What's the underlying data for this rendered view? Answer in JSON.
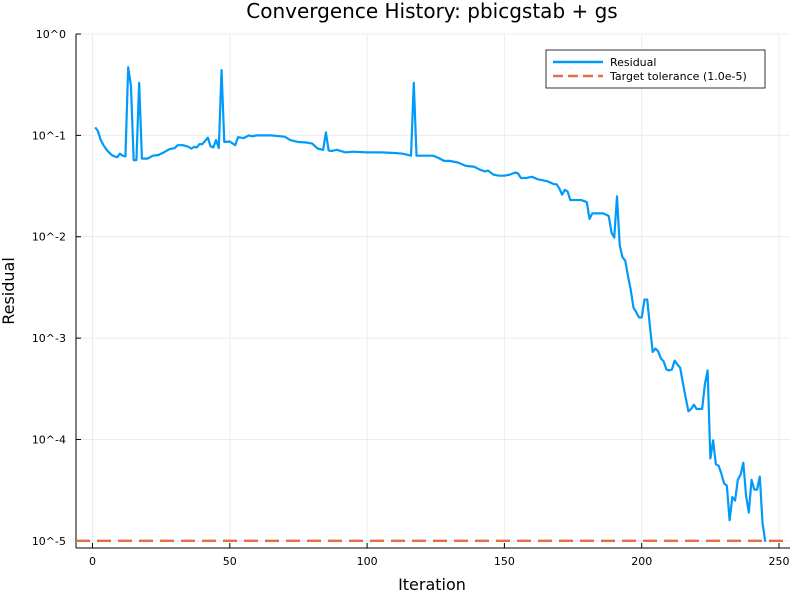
{
  "chart_data": {
    "type": "line",
    "title": "Convergence History: pbicgstab + gs",
    "xlabel": "Iteration",
    "ylabel": "Residual",
    "xlim": [
      -6,
      254
    ],
    "ylim": [
      8.5e-06,
      1.0
    ],
    "yscale": "log",
    "grid": true,
    "legend_position": "top-right",
    "x_ticks": [
      0,
      50,
      100,
      150,
      200,
      250
    ],
    "y_ticks": [
      {
        "value": 1.0,
        "label": "10^0"
      },
      {
        "value": 0.1,
        "label": "10^-1"
      },
      {
        "value": 0.01,
        "label": "10^-2"
      },
      {
        "value": 0.001,
        "label": "10^-3"
      },
      {
        "value": 0.0001,
        "label": "10^-4"
      },
      {
        "value": 1e-05,
        "label": "10^-5"
      }
    ],
    "series": [
      {
        "name": "Residual",
        "color": "#009af9",
        "points": [
          [
            1,
            0.12
          ],
          [
            2,
            0.11
          ],
          [
            3,
            0.09
          ],
          [
            4,
            0.08
          ],
          [
            5,
            0.073
          ],
          [
            6,
            0.068
          ],
          [
            7,
            0.064
          ],
          [
            8,
            0.062
          ],
          [
            9,
            0.061
          ],
          [
            10,
            0.066
          ],
          [
            11,
            0.063
          ],
          [
            12,
            0.062
          ],
          [
            13,
            0.47
          ],
          [
            14,
            0.31
          ],
          [
            15,
            0.057
          ],
          [
            16,
            0.057
          ],
          [
            17,
            0.33
          ],
          [
            18,
            0.059
          ],
          [
            20,
            0.059
          ],
          [
            22,
            0.063
          ],
          [
            24,
            0.064
          ],
          [
            26,
            0.068
          ],
          [
            28,
            0.073
          ],
          [
            30,
            0.075
          ],
          [
            31,
            0.08
          ],
          [
            33,
            0.08
          ],
          [
            35,
            0.077
          ],
          [
            36,
            0.074
          ],
          [
            37,
            0.077
          ],
          [
            38,
            0.076
          ],
          [
            39,
            0.082
          ],
          [
            40,
            0.082
          ],
          [
            41,
            0.088
          ],
          [
            42,
            0.095
          ],
          [
            43,
            0.078
          ],
          [
            44,
            0.076
          ],
          [
            45,
            0.09
          ],
          [
            46,
            0.075
          ],
          [
            47,
            0.44
          ],
          [
            48,
            0.086
          ],
          [
            50,
            0.087
          ],
          [
            52,
            0.08
          ],
          [
            53,
            0.096
          ],
          [
            55,
            0.094
          ],
          [
            57,
            0.1
          ],
          [
            58,
            0.098
          ],
          [
            60,
            0.1
          ],
          [
            65,
            0.1
          ],
          [
            70,
            0.097
          ],
          [
            72,
            0.09
          ],
          [
            75,
            0.086
          ],
          [
            78,
            0.085
          ],
          [
            80,
            0.083
          ],
          [
            82,
            0.074
          ],
          [
            84,
            0.072
          ],
          [
            85,
            0.107
          ],
          [
            86,
            0.071
          ],
          [
            87,
            0.07
          ],
          [
            89,
            0.072
          ],
          [
            92,
            0.068
          ],
          [
            95,
            0.069
          ],
          [
            100,
            0.068
          ],
          [
            105,
            0.068
          ],
          [
            110,
            0.067
          ],
          [
            113,
            0.066
          ],
          [
            116,
            0.063
          ],
          [
            117,
            0.33
          ],
          [
            118,
            0.063
          ],
          [
            120,
            0.063
          ],
          [
            124,
            0.063
          ],
          [
            126,
            0.06
          ],
          [
            128,
            0.056
          ],
          [
            130,
            0.056
          ],
          [
            133,
            0.054
          ],
          [
            136,
            0.05
          ],
          [
            139,
            0.049
          ],
          [
            141,
            0.046
          ],
          [
            143,
            0.044
          ],
          [
            144,
            0.045
          ],
          [
            146,
            0.041
          ],
          [
            148,
            0.04
          ],
          [
            150,
            0.04
          ],
          [
            152,
            0.041
          ],
          [
            154,
            0.043
          ],
          [
            155,
            0.042
          ],
          [
            156,
            0.038
          ],
          [
            158,
            0.038
          ],
          [
            160,
            0.039
          ],
          [
            162,
            0.037
          ],
          [
            164,
            0.036
          ],
          [
            166,
            0.035
          ],
          [
            168,
            0.033
          ],
          [
            169,
            0.033
          ],
          [
            170,
            0.03
          ],
          [
            171,
            0.026
          ],
          [
            172,
            0.029
          ],
          [
            173,
            0.028
          ],
          [
            174,
            0.023
          ],
          [
            176,
            0.023
          ],
          [
            178,
            0.023
          ],
          [
            180,
            0.022
          ],
          [
            181,
            0.015
          ],
          [
            182,
            0.017
          ],
          [
            184,
            0.017
          ],
          [
            186,
            0.017
          ],
          [
            188,
            0.016
          ],
          [
            189,
            0.011
          ],
          [
            190,
            0.0098
          ],
          [
            191,
            0.025
          ],
          [
            192,
            0.0082
          ],
          [
            193,
            0.0063
          ],
          [
            194,
            0.0058
          ],
          [
            195,
            0.0041
          ],
          [
            196,
            0.003
          ],
          [
            197,
            0.002
          ],
          [
            198,
            0.0018
          ],
          [
            199,
            0.0016
          ],
          [
            200,
            0.0016
          ],
          [
            201,
            0.0024
          ],
          [
            202,
            0.0024
          ],
          [
            203,
            0.0013
          ],
          [
            204,
            0.00073
          ],
          [
            205,
            0.00079
          ],
          [
            206,
            0.00074
          ],
          [
            207,
            0.00063
          ],
          [
            208,
            0.00059
          ],
          [
            209,
            0.00049
          ],
          [
            210,
            0.00048
          ],
          [
            211,
            0.00049
          ],
          [
            212,
            0.0006
          ],
          [
            213,
            0.00055
          ],
          [
            214,
            0.00051
          ],
          [
            215,
            0.00036
          ],
          [
            216,
            0.00026
          ],
          [
            217,
            0.00019
          ],
          [
            218,
            0.0002
          ],
          [
            219,
            0.00022
          ],
          [
            220,
            0.0002
          ],
          [
            221,
            0.0002
          ],
          [
            222,
            0.0002
          ],
          [
            223,
            0.00035
          ],
          [
            224,
            0.00048
          ],
          [
            225,
            6.5e-05
          ],
          [
            226,
            9.8e-05
          ],
          [
            227,
            5.7e-05
          ],
          [
            228,
            5.5e-05
          ],
          [
            229,
            4.6e-05
          ],
          [
            230,
            3.7e-05
          ],
          [
            231,
            3.5e-05
          ],
          [
            232,
            1.6e-05
          ],
          [
            233,
            2.7e-05
          ],
          [
            234,
            2.5e-05
          ],
          [
            235,
            4e-05
          ],
          [
            236,
            4.5e-05
          ],
          [
            237,
            5.9e-05
          ],
          [
            238,
            2.8e-05
          ],
          [
            239,
            1.9e-05
          ],
          [
            240,
            4e-05
          ],
          [
            241,
            3.2e-05
          ],
          [
            242,
            3.2e-05
          ],
          [
            243,
            4.3e-05
          ],
          [
            244,
            1.5e-05
          ],
          [
            245,
            9.8e-06
          ]
        ]
      },
      {
        "name": "Target tolerance (1.0e-5)",
        "color": "#e26f46",
        "dashed": true,
        "constant": 1e-05
      }
    ]
  }
}
